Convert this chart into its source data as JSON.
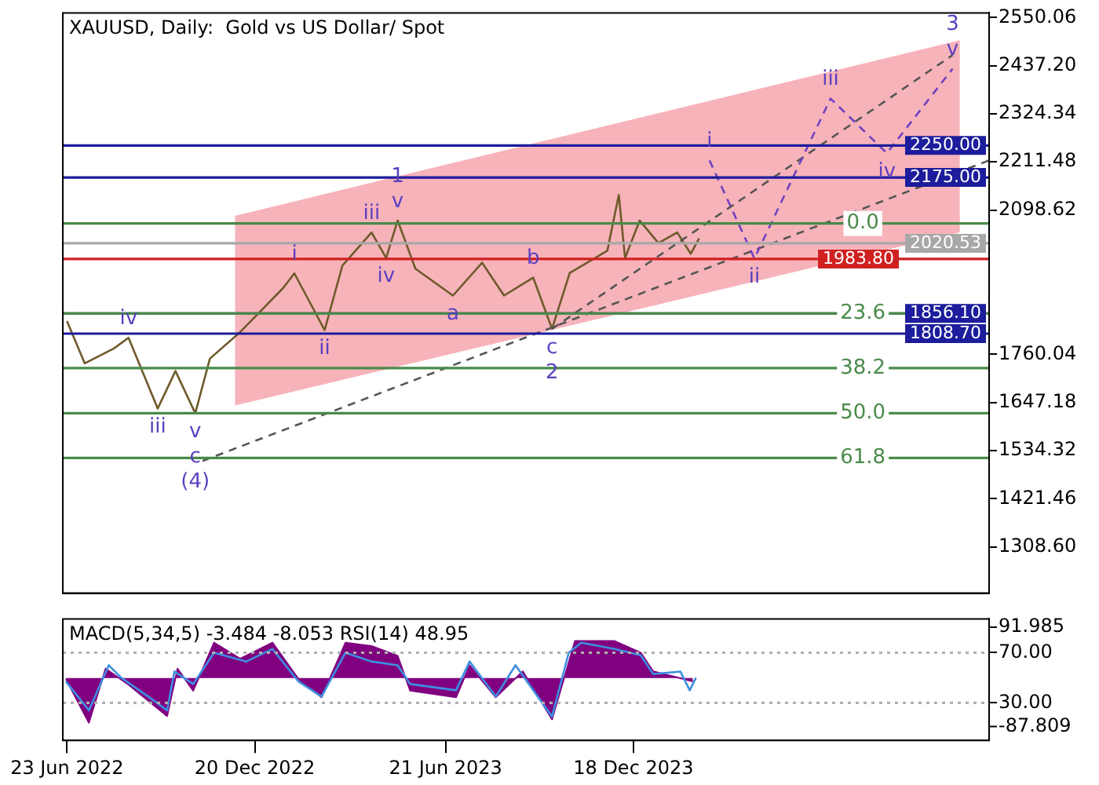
{
  "chart_data": [
    {
      "type": "line",
      "title": "XAUUSD, Daily:  Gold vs US Dollar/ Spot",
      "tick_labels": "y",
      "xlim": [
        "2022-06-19",
        "2024-11-23"
      ],
      "ylim": [
        1200,
        2561
      ],
      "yticks": [
        {
          "value": 2550.06,
          "label": "2550.06"
        },
        {
          "value": 2437.2,
          "label": "2437.20"
        },
        {
          "value": 2324.34,
          "label": "2324.34"
        },
        {
          "value": 2211.48,
          "label": "2211.48"
        },
        {
          "value": 2098.62,
          "label": "2098.62"
        },
        {
          "value": 1760.04,
          "label": "1760.04"
        },
        {
          "value": 1647.18,
          "label": "1647.18"
        },
        {
          "value": 1534.32,
          "label": "1534.32"
        },
        {
          "value": 1421.46,
          "label": "1421.46"
        },
        {
          "value": 1308.6,
          "label": "1308.60"
        }
      ],
      "series": [
        {
          "type": "area",
          "color": "#f7b3ba",
          "x": [
            "2022-12-01",
            "2024-10-26"
          ],
          "values": [
            null,
            null
          ],
          "lower": [
            1640,
            2046
          ],
          "upper": [
            2085,
            2497
          ]
        },
        {
          "type": "line",
          "color": "#6e5a2a",
          "x": [
            "2022-06-23",
            "2022-07-10",
            "2022-08-07",
            "2022-08-21",
            "2022-09-18",
            "2022-10-05",
            "2022-10-24",
            "2022-11-07",
            "2022-12-05",
            "2023-01-16",
            "2023-01-27",
            "2023-02-25",
            "2023-03-14",
            "2023-04-11",
            "2023-04-25",
            "2023-05-06",
            "2023-05-23",
            "2023-06-28",
            "2023-07-26",
            "2023-08-16",
            "2023-09-13",
            "2023-10-01",
            "2023-10-18",
            "2023-11-23",
            "2023-12-04",
            "2023-12-10",
            "2023-12-24",
            "2024-01-11",
            "2024-01-29",
            "2024-02-11",
            "2024-02-19"
          ],
          "values": [
            1838,
            1739,
            1774,
            1799,
            1633,
            1721,
            1622,
            1750,
            1810,
            1915,
            1950,
            1817,
            1968,
            2046,
            1986,
            2074,
            1961,
            1898,
            1975,
            1898,
            1940,
            1820,
            1951,
            2003,
            2134,
            1986,
            2074,
            2021,
            2046,
            1996,
            2032
          ]
        },
        {
          "type": "line",
          "color": "#555555",
          "line_style": "dashed",
          "x": [
            "2022-10-31",
            "2024-11-23"
          ],
          "values": [
            1510,
            2215
          ]
        },
        {
          "type": "line",
          "color": "#555555",
          "line_style": "dashed",
          "x": [
            "2023-10-01",
            "2024-10-19"
          ],
          "values": [
            1820,
            2462
          ]
        },
        {
          "type": "line",
          "color": "#7040c0",
          "line_style": "dashed",
          "x": [
            "2024-02-29",
            "2024-04-12",
            "2024-06-24",
            "2024-08-17",
            "2024-10-19"
          ],
          "values": [
            2215,
            1985,
            2360,
            2232,
            2430
          ]
        }
      ],
      "ref_lines": [
        {
          "axis": "y",
          "value": 2250,
          "label": "2250.00",
          "color": "#1c1c9c"
        },
        {
          "axis": "y",
          "value": 2175,
          "label": "2175.00",
          "color": "#1c1c9c"
        },
        {
          "axis": "y",
          "value": 2020.53,
          "label": "2020.53",
          "color": "#a8a8a8"
        },
        {
          "axis": "y",
          "value": 1983.8,
          "label": "1983.80",
          "color": "#d02020"
        },
        {
          "axis": "y",
          "value": 1856.1,
          "label": "1856.10",
          "color": "#1c1c9c"
        },
        {
          "axis": "y",
          "value": 1808.7,
          "label": "1808.70",
          "color": "#1c1c9c"
        },
        {
          "axis": "y",
          "value": 2067,
          "color": "#4a8a4a"
        },
        {
          "axis": "y",
          "value": 1856,
          "color": "#4a8a4a"
        },
        {
          "axis": "y",
          "value": 1728,
          "color": "#4a8a4a"
        },
        {
          "axis": "y",
          "value": 1622,
          "color": "#4a8a4a"
        },
        {
          "axis": "y",
          "value": 1517,
          "color": "#4a8a4a"
        }
      ],
      "annotations": [
        {
          "text": "iv",
          "x": "2022-08-21",
          "y": 1799
        },
        {
          "text": "iii",
          "x": "2022-09-18",
          "y": 1633
        },
        {
          "text": "v",
          "x": "2022-10-24",
          "y": 1622
        },
        {
          "text": "c",
          "x": "2022-10-24",
          "y": 1622
        },
        {
          "text": "(4)",
          "x": "2022-10-24",
          "y": 1622
        },
        {
          "text": "i",
          "x": "2023-01-27",
          "y": 1950
        },
        {
          "text": "ii",
          "x": "2023-02-25",
          "y": 1817
        },
        {
          "text": "iii",
          "x": "2023-04-11",
          "y": 2046
        },
        {
          "text": "v",
          "x": "2023-05-06",
          "y": 2074
        },
        {
          "text": "1",
          "x": "2023-05-06",
          "y": 2074
        },
        {
          "text": "iv",
          "x": "2023-04-25",
          "y": 1986
        },
        {
          "text": "a",
          "x": "2023-06-28",
          "y": 1898
        },
        {
          "text": "b",
          "x": "2023-09-13",
          "y": 1940
        },
        {
          "text": "c",
          "x": "2023-10-01",
          "y": 1820
        },
        {
          "text": "2",
          "x": "2023-10-01",
          "y": 1820
        },
        {
          "text": "i",
          "x": "2024-02-29",
          "y": 2215
        },
        {
          "text": "ii",
          "x": "2024-04-12",
          "y": 1985
        },
        {
          "text": "iii",
          "x": "2024-06-24",
          "y": 2360
        },
        {
          "text": "iv",
          "x": "2024-08-17",
          "y": 2232
        },
        {
          "text": "v",
          "x": "2024-10-19",
          "y": 2430
        },
        {
          "text": "3",
          "x": "2024-10-19",
          "y": 2430
        },
        {
          "text": "0.0",
          "x": "2024-07-25",
          "y": 2067
        },
        {
          "text": "23.6",
          "x": "2024-07-25",
          "y": 1856
        },
        {
          "text": "38.2",
          "x": "2024-07-25",
          "y": 1728
        },
        {
          "text": "50.0",
          "x": "2024-07-25",
          "y": 1622
        },
        {
          "text": "61.8",
          "x": "2024-07-25",
          "y": 1517
        }
      ]
    },
    {
      "type": "line",
      "title": "MACD(5,34,5) -3.484 -8.053 RSI(14) 48.95",
      "xlim": [
        "2022-06-19",
        "2024-11-23"
      ],
      "ylim": [
        0,
        97
      ],
      "yticks": [
        {
          "value": 70,
          "label": "70.00"
        },
        {
          "value": 30,
          "label": "30.00"
        }
      ],
      "y2lim": [
        -113,
        107
      ],
      "y2ticks": [
        91.985,
        -87.809
      ],
      "xticks": [
        {
          "value": "2022-06-23",
          "label": "23 Jun 2022"
        },
        {
          "value": "2022-12-20",
          "label": "20 Dec 2022"
        },
        {
          "value": "2023-06-21",
          "label": "21 Jun 2023"
        },
        {
          "value": "2023-12-18",
          "label": "18 Dec 2023"
        }
      ],
      "series": [
        {
          "type": "area",
          "axis": "y2",
          "color": "#800080",
          "x": [
            "2022-06-22",
            "2022-07-14",
            "2022-07-30",
            "2022-08-21",
            "2022-09-27",
            "2022-10-07",
            "2022-10-22",
            "2022-11-11",
            "2022-12-06",
            "2023-01-06",
            "2023-01-31",
            "2023-02-22",
            "2023-03-17",
            "2023-04-11",
            "2023-05-06",
            "2023-05-18",
            "2023-07-01",
            "2023-07-14",
            "2023-08-08",
            "2023-09-03",
            "2023-10-01",
            "2023-10-23",
            "2023-11-30",
            "2023-12-25",
            "2024-01-06",
            "2024-02-13"
          ],
          "values": [
            -2,
            -81,
            17,
            -12,
            -69,
            17,
            -23,
            64,
            35,
            64,
            -2,
            -35,
            64,
            58,
            40,
            -23,
            -35,
            23,
            -35,
            12,
            -75,
            67,
            67,
            46,
            12,
            -6
          ]
        },
        {
          "type": "line",
          "color": "#3d8fe0",
          "x": [
            "2022-06-22",
            "2022-07-14",
            "2022-08-02",
            "2022-08-14",
            "2022-09-09",
            "2022-09-27",
            "2022-10-04",
            "2022-10-22",
            "2022-11-11",
            "2022-12-12",
            "2023-01-06",
            "2023-01-31",
            "2023-02-22",
            "2023-03-17",
            "2023-04-11",
            "2023-05-06",
            "2023-05-18",
            "2023-07-01",
            "2023-07-14",
            "2023-08-08",
            "2023-08-27",
            "2023-10-01",
            "2023-10-17",
            "2023-10-29",
            "2023-11-30",
            "2023-12-25",
            "2024-01-06",
            "2024-02-01",
            "2024-02-10",
            "2024-02-16"
          ],
          "values": [
            47,
            24,
            60,
            50,
            35,
            24,
            55,
            45,
            70,
            63,
            73,
            47,
            35,
            70,
            63,
            60,
            45,
            40,
            63,
            35,
            60,
            19,
            70,
            78,
            73,
            68,
            53,
            55,
            40,
            50
          ]
        }
      ],
      "ref_lines": [
        {
          "axis": "y",
          "value": 70,
          "color": "#b0b0b0",
          "line_style": "dotted"
        },
        {
          "axis": "y",
          "value": 30,
          "color": "#b0b0b0",
          "line_style": "dotted"
        }
      ]
    }
  ]
}
